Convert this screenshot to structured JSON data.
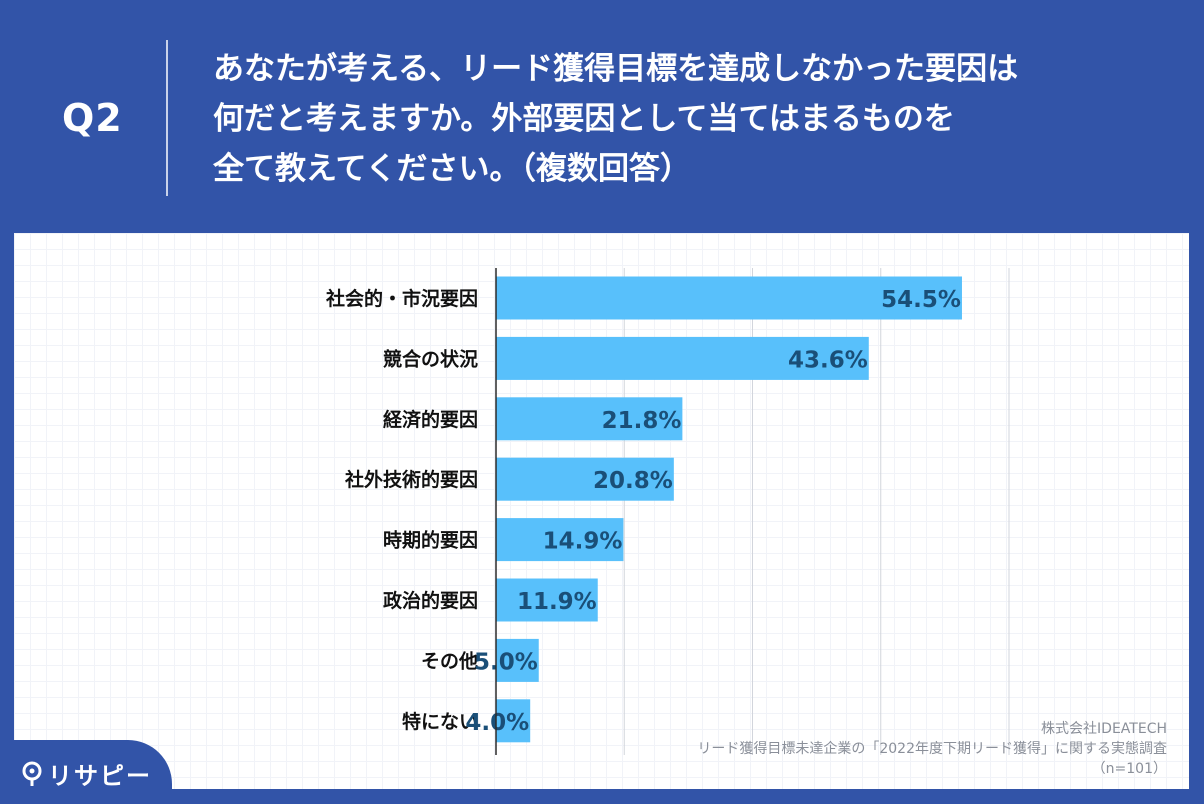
{
  "header": {
    "question_number": "Q2",
    "question_lines": [
      "あなたが考える、リード獲得目標を達成しなかった要因は",
      "何だと考えますか。外部要因として当てはまるものを",
      "全て教えてください。（複数回答）"
    ]
  },
  "chart_data": {
    "type": "bar",
    "orientation": "horizontal",
    "categories": [
      "社会的・市況要因",
      "競合の状況",
      "経済的要因",
      "社外技術的要因",
      "時期的要因",
      "政治的要因",
      "その他",
      "特にない"
    ],
    "values": [
      54.5,
      43.6,
      21.8,
      20.8,
      14.9,
      11.9,
      5.0,
      4.0
    ],
    "value_labels": [
      "54.5%",
      "43.6%",
      "21.8%",
      "20.8%",
      "14.9%",
      "11.9%",
      "5.0%",
      "4.0%"
    ],
    "xlim": [
      0,
      60
    ],
    "grid": true,
    "bar_color": "#58c0fb",
    "label_color": "#1a4f78"
  },
  "credit": {
    "company": "株式会社IDEATECH",
    "survey": "リード獲得目標未達企業の「2022年度下期リード獲得」に関する実態調査",
    "sample": "（n=101）"
  },
  "logo": {
    "text": "リサピー"
  }
}
